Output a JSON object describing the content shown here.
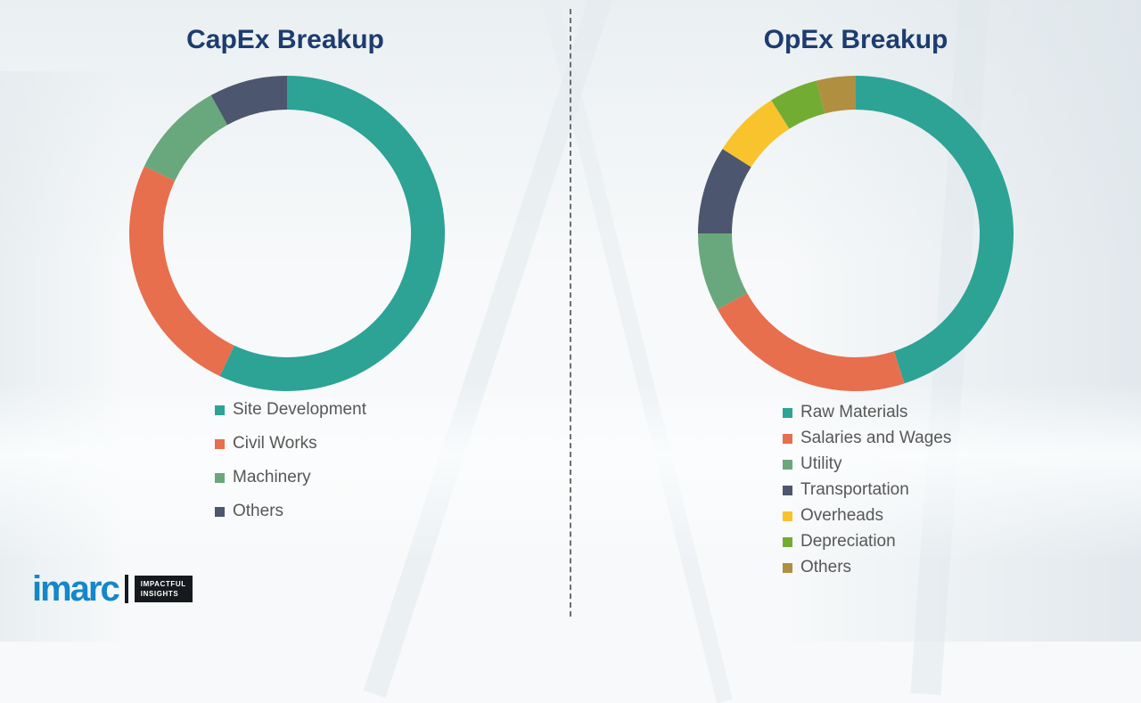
{
  "chart_data": [
    {
      "type": "pie",
      "donut": true,
      "title": "CapEx Breakup",
      "legend_position": "bottom",
      "segments": [
        {
          "label": "Site Development",
          "value": 57,
          "color": "#2ca395"
        },
        {
          "label": "Civil Works",
          "value": 25,
          "color": "#e76f4e"
        },
        {
          "label": "Machinery",
          "value": 10,
          "color": "#69a87c"
        },
        {
          "label": "Others",
          "value": 8,
          "color": "#4c566e"
        }
      ]
    },
    {
      "type": "pie",
      "donut": true,
      "title": "OpEx Breakup",
      "legend_position": "bottom",
      "segments": [
        {
          "label": "Raw Materials",
          "value": 45,
          "color": "#2ca395"
        },
        {
          "label": "Salaries and Wages",
          "value": 22,
          "color": "#e76f4e"
        },
        {
          "label": "Utility",
          "value": 8,
          "color": "#69a87c"
        },
        {
          "label": "Transportation",
          "value": 9,
          "color": "#4c566e"
        },
        {
          "label": "Overheads",
          "value": 7,
          "color": "#f8c32c"
        },
        {
          "label": "Depreciation",
          "value": 5,
          "color": "#73ac33"
        },
        {
          "label": "Others",
          "value": 4,
          "color": "#b18f40"
        }
      ]
    }
  ],
  "colors": {
    "title": "#1d3c6f",
    "legend_text": "#575757",
    "divider": "#6e6e6e",
    "brand_blue": "#1587c9"
  },
  "logo": {
    "brand": "imarc",
    "tagline_line1": "IMPACTFUL",
    "tagline_line2": "INSIGHTS"
  }
}
